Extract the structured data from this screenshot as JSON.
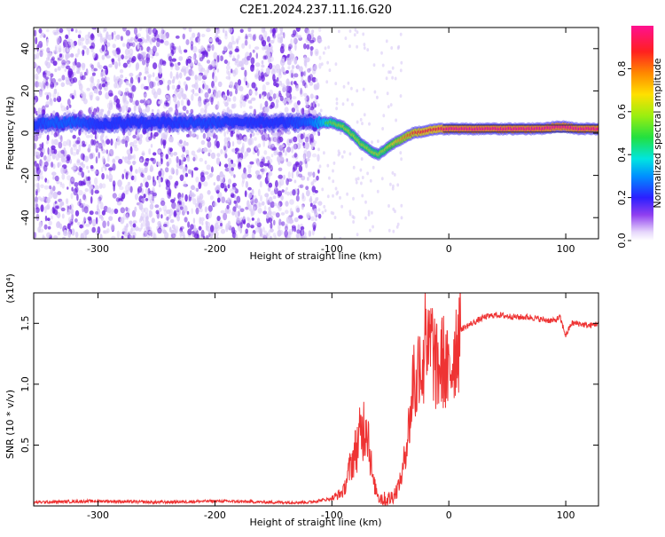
{
  "title": "C2E1.2024.237.11.16.G20",
  "colors": {
    "snr_line": "#ee3333",
    "ridge_core": "#ff2a2a",
    "ridge_mid": "#22dd55",
    "ridge_edge": "#3322ee",
    "scatter": "#6a1ee0",
    "scatter_faint": "#d9c9f7"
  },
  "chart_data": [
    {
      "id": "spectrogram",
      "type": "heatmap",
      "xlabel": "Height of straight line (km)",
      "ylabel": "Frequency (Hz)",
      "xlim": [
        -355,
        128
      ],
      "ylim": [
        -50,
        50
      ],
      "x_ticks": [
        -300,
        -200,
        -100,
        0,
        100
      ],
      "y_ticks": [
        -40,
        -20,
        0,
        20,
        40
      ],
      "colorbar": {
        "label": "Normalized spectral amplitude",
        "range": [
          0,
          1
        ],
        "ticks": [
          "0.0",
          "0.2",
          "0.4",
          "0.6",
          "0.8"
        ],
        "tick_values": [
          0,
          0.2,
          0.4,
          0.6,
          0.8
        ],
        "colormap": "rainbow"
      },
      "ridge": {
        "x": [
          -355,
          -340,
          -320,
          -300,
          -280,
          -260,
          -240,
          -220,
          -200,
          -180,
          -160,
          -140,
          -120,
          -110,
          -100,
          -90,
          -80,
          -75,
          -70,
          -65,
          -60,
          -55,
          -50,
          -45,
          -40,
          -35,
          -30,
          -20,
          -10,
          0,
          20,
          40,
          60,
          80,
          90,
          100,
          110,
          128
        ],
        "freq": [
          4,
          5,
          5,
          4,
          5,
          5,
          5,
          5,
          5,
          5,
          5,
          5,
          5,
          5,
          5,
          3,
          -2,
          -5,
          -7,
          -9,
          -10,
          -8,
          -6,
          -4,
          -3,
          -1,
          0,
          1,
          2,
          2,
          2,
          2,
          2,
          2,
          3,
          3,
          2,
          2
        ],
        "amplitude": [
          0.3,
          0.35,
          0.35,
          0.3,
          0.3,
          0.3,
          0.3,
          0.32,
          0.32,
          0.3,
          0.3,
          0.3,
          0.35,
          0.45,
          0.55,
          0.6,
          0.6,
          0.6,
          0.6,
          0.6,
          0.6,
          0.6,
          0.65,
          0.7,
          0.75,
          0.8,
          0.85,
          0.9,
          0.9,
          1.0,
          1.0,
          1.0,
          1.0,
          1.0,
          1.0,
          1.0,
          1.0,
          1.0
        ]
      }
    },
    {
      "id": "snr",
      "type": "line",
      "xlabel": "Height of straight line (km)",
      "ylabel": "SNR (10 * v/v)",
      "y_multiplier": "(x10⁴)",
      "xlim": [
        -355,
        128
      ],
      "ylim": [
        0,
        1.75
      ],
      "x_ticks": [
        -300,
        -200,
        -100,
        0,
        100
      ],
      "y_ticks": [
        0.5,
        1.0,
        1.5
      ],
      "y_tick_labels": [
        "0.5",
        "1.0",
        "1.5"
      ],
      "series": [
        {
          "x": [
            -355,
            -300,
            -250,
            -200,
            -150,
            -120,
            -100,
            -90,
            -85,
            -80,
            -75,
            -70,
            -68,
            -65,
            -60,
            -55,
            -50,
            -45,
            -40,
            -35,
            -32,
            -30,
            -28,
            -25,
            -22,
            -20,
            -18,
            -15,
            -10,
            -5,
            0,
            5,
            10,
            20,
            30,
            40,
            50,
            60,
            70,
            80,
            90,
            95,
            100,
            105,
            110,
            120,
            128
          ],
          "values": [
            0.03,
            0.04,
            0.03,
            0.04,
            0.03,
            0.03,
            0.06,
            0.12,
            0.3,
            0.45,
            0.6,
            0.72,
            0.5,
            0.2,
            0.08,
            0.05,
            0.06,
            0.12,
            0.25,
            0.6,
            0.8,
            1.15,
            0.9,
            1.3,
            1.0,
            1.75,
            1.2,
            1.35,
            1.1,
            1.2,
            1.05,
            1.3,
            1.45,
            1.5,
            1.55,
            1.57,
            1.56,
            1.55,
            1.55,
            1.53,
            1.52,
            1.55,
            1.4,
            1.5,
            1.5,
            1.48,
            1.5
          ]
        }
      ]
    }
  ]
}
